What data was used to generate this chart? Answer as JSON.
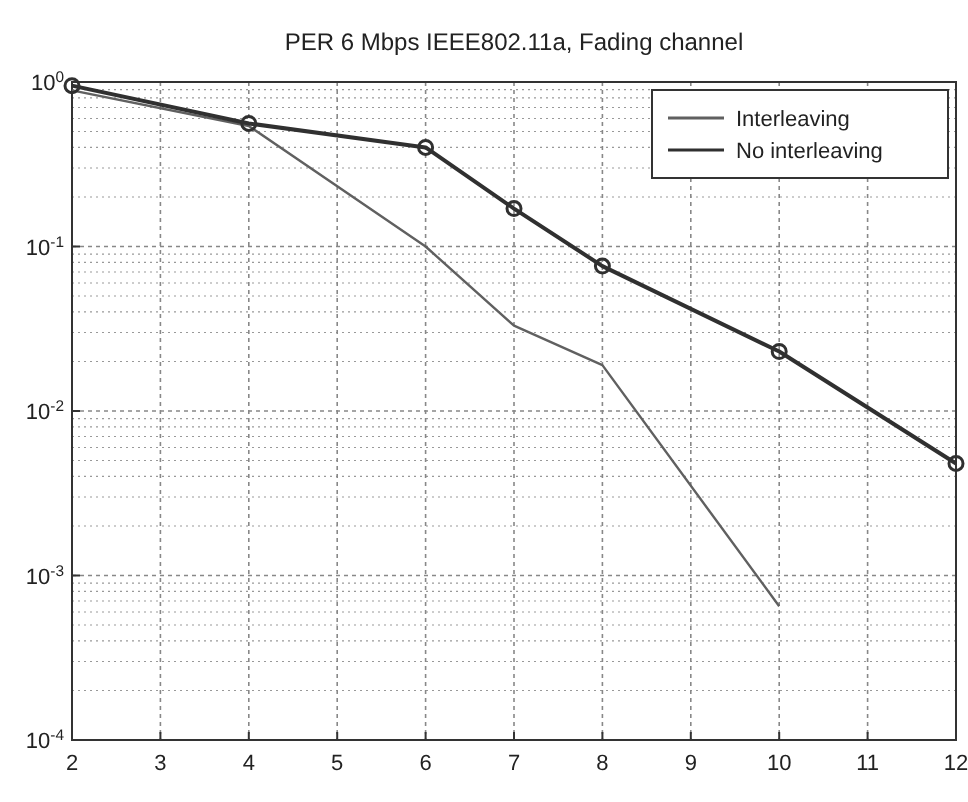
{
  "chart_data": {
    "type": "line",
    "title": "PER 6 Mbps IEEE802.11a, Fading channel",
    "x": [
      2,
      4,
      6,
      7,
      8,
      10,
      12
    ],
    "series": [
      {
        "name": "Interleaving",
        "color": "#606060",
        "marker": "none",
        "x": [
          2,
          4,
          6,
          7,
          8,
          10
        ],
        "values": [
          0.89,
          0.54,
          0.1,
          0.033,
          0.019,
          0.00065
        ]
      },
      {
        "name": "No interleaving",
        "color": "#303030",
        "marker": "circle",
        "values": [
          0.95,
          0.56,
          0.4,
          0.17,
          0.076,
          0.023,
          0.0048
        ]
      }
    ],
    "log": "y",
    "xlim": [
      2,
      12
    ],
    "xticks": [
      2,
      3,
      4,
      5,
      6,
      7,
      8,
      9,
      10,
      11,
      12
    ],
    "ylim": [
      0.0001,
      1
    ],
    "yticks": [
      {
        "value": 0.0001,
        "label": "10$^{-4}$"
      },
      {
        "value": 0.001,
        "label": "10$^{-3}$"
      },
      {
        "value": 0.01,
        "label": "10$^{-2}$"
      },
      {
        "value": 0.1,
        "label": "10$^{-1}$"
      },
      {
        "value": 1,
        "label": "10$^{0}$"
      }
    ],
    "grid": true,
    "legend": "top right",
    "line_style": "solid"
  }
}
